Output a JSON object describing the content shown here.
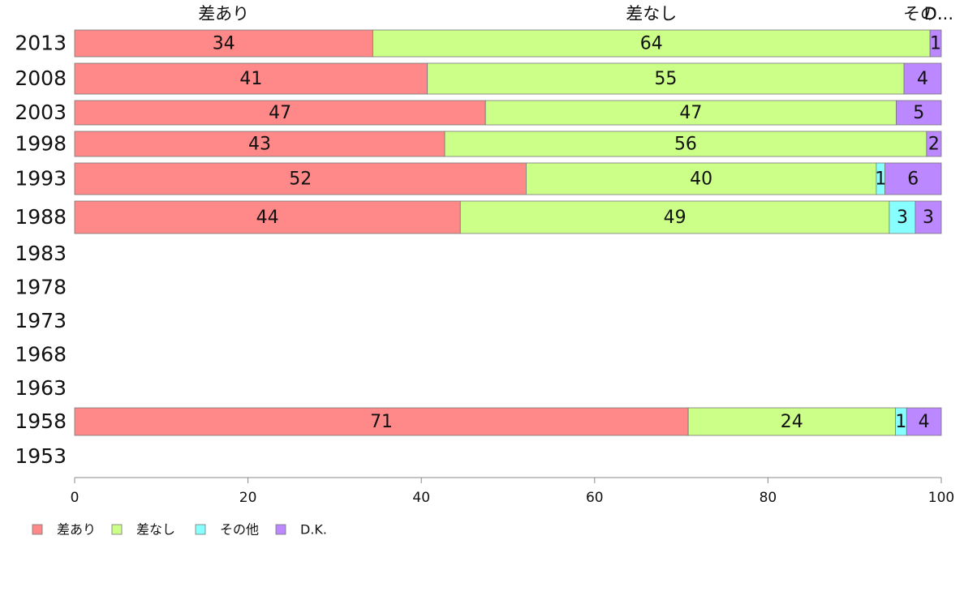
{
  "chart_data": {
    "type": "bar",
    "orientation": "horizontal",
    "stacked": true,
    "categories": [
      "2013",
      "2008",
      "2003",
      "1998",
      "1993",
      "1988",
      "1983",
      "1978",
      "1973",
      "1968",
      "1963",
      "1958",
      "1953"
    ],
    "series": [
      {
        "name": "差あり",
        "color": "#FF8888",
        "values": [
          34.4,
          40.7,
          47.4,
          42.7,
          52.1,
          44.5,
          null,
          null,
          null,
          null,
          null,
          70.8,
          null
        ],
        "labels": [
          "34",
          "41",
          "47",
          "43",
          "52",
          "44",
          "",
          "",
          "",
          "",
          "",
          "71",
          ""
        ]
      },
      {
        "name": "差なし",
        "color": "#CCFF88",
        "values": [
          64.3,
          55.0,
          47.4,
          55.6,
          40.4,
          49.5,
          null,
          null,
          null,
          null,
          null,
          23.9,
          null
        ],
        "labels": [
          "64",
          "55",
          "47",
          "56",
          "40",
          "49",
          "",
          "",
          "",
          "",
          "",
          "24",
          ""
        ]
      },
      {
        "name": "その他",
        "color": "#88FFFF",
        "values": [
          0,
          0,
          0,
          0,
          1.0,
          3.0,
          null,
          null,
          null,
          null,
          null,
          1.3,
          null
        ],
        "labels": [
          "",
          "",
          "",
          "",
          "1",
          "3",
          "",
          "",
          "",
          "",
          "",
          "1",
          ""
        ]
      },
      {
        "name": "D.K.",
        "color": "#BB88FF",
        "values": [
          1.3,
          4.3,
          5.2,
          1.7,
          6.5,
          3.0,
          null,
          null,
          null,
          null,
          null,
          4.0,
          null
        ],
        "labels": [
          "1",
          "4",
          "5",
          "2",
          "6",
          "3",
          "",
          "",
          "",
          "",
          "",
          "4",
          ""
        ]
      }
    ],
    "top_labels": [
      "差あり",
      "差なし",
      "その..."
    ],
    "top_label_overlay": "D.",
    "xlim": [
      0,
      100
    ],
    "xticks": [
      "0",
      "20",
      "40",
      "60",
      "80",
      "100"
    ],
    "grid": false,
    "legend_position": "bottom-left"
  }
}
